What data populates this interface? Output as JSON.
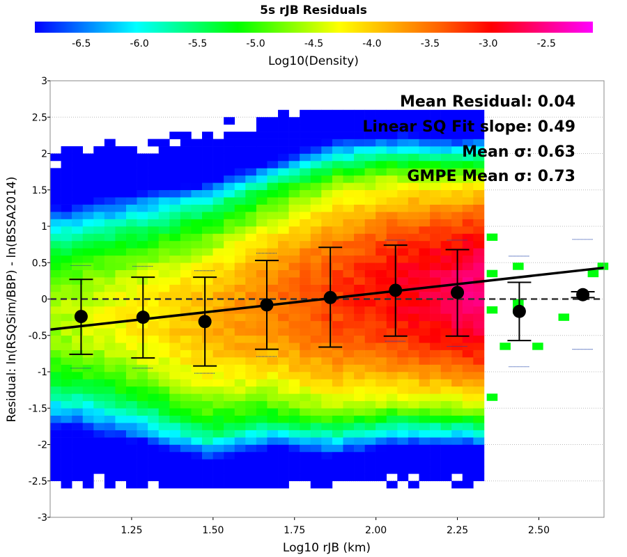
{
  "chart_data": {
    "type": "heatmap",
    "title": "5s rJB Residuals",
    "colorbar": {
      "label": "Log10(Density)",
      "range": [
        -6.9,
        -2.1
      ],
      "ticks": [
        -6.5,
        -6.0,
        -5.5,
        -5.0,
        -4.5,
        -4.0,
        -3.5,
        -3.0,
        -2.5
      ],
      "tick_labels": [
        "-6.5",
        "-6.0",
        "-5.5",
        "-5.0",
        "-4.5",
        "-4.0",
        "-3.5",
        "-3.0",
        "-2.5"
      ],
      "colors": [
        "#0000ff",
        "#0080ff",
        "#00ffff",
        "#00ff80",
        "#00ff00",
        "#80ff00",
        "#ffff00",
        "#ffb000",
        "#ff6000",
        "#ff0000",
        "#ff0080",
        "#ff00ff"
      ]
    },
    "xlabel": "Log10 rJB (km)",
    "ylabel": "Residual: ln(RSQSim/BBP) - ln(BSSA2014)",
    "xlim": [
      1.0,
      2.7
    ],
    "ylim": [
      -3,
      3
    ],
    "xticks": [
      1.25,
      1.5,
      1.75,
      2.0,
      2.25,
      2.5
    ],
    "xtick_labels": [
      "1.25",
      "1.50",
      "1.75",
      "2.00",
      "2.25",
      "2.50"
    ],
    "yticks": [
      -3,
      -2.5,
      -2,
      -1.5,
      -1,
      -0.5,
      0,
      0.5,
      1,
      1.5,
      2,
      2.5,
      3
    ],
    "ytick_labels": [
      "-3",
      "-2.5",
      "-2",
      "-1.5",
      "-1",
      "-0.5",
      "0",
      "0.5",
      "1",
      "1.5",
      "2",
      "2.5",
      "3"
    ],
    "grid": true,
    "heatmap": {
      "x_range": [
        1.0,
        2.32
      ],
      "bin_width": 0.0333,
      "bin_height": 0.1,
      "columns": [
        {
          "x": 1.1,
          "center": -0.25,
          "sigma": 0.52
        },
        {
          "x": 1.29,
          "center": -0.26,
          "sigma": 0.56
        },
        {
          "x": 1.48,
          "center": -0.31,
          "sigma": 0.62
        },
        {
          "x": 1.67,
          "center": -0.08,
          "sigma": 0.62
        },
        {
          "x": 1.87,
          "center": 0.02,
          "sigma": 0.69
        },
        {
          "x": 2.06,
          "center": 0.12,
          "sigma": 0.64
        },
        {
          "x": 2.25,
          "center": 0.09,
          "sigma": 0.6
        }
      ],
      "outliers": [
        {
          "x": 2.34,
          "y": 0.85,
          "value": -5.2
        },
        {
          "x": 2.34,
          "y": 0.35,
          "value": -5.2
        },
        {
          "x": 2.34,
          "y": -0.15,
          "value": -5.2
        },
        {
          "x": 2.34,
          "y": -1.35,
          "value": -5.2
        },
        {
          "x": 2.38,
          "y": -0.65,
          "value": -5.2
        },
        {
          "x": 2.42,
          "y": 0.45,
          "value": -5.2
        },
        {
          "x": 2.42,
          "y": -0.05,
          "value": -5.2
        },
        {
          "x": 2.42,
          "y": -0.15,
          "value": -5.2
        },
        {
          "x": 2.48,
          "y": -0.65,
          "value": -5.2
        },
        {
          "x": 2.56,
          "y": -0.25,
          "value": -5.2
        },
        {
          "x": 2.65,
          "y": 0.35,
          "value": -5.2
        },
        {
          "x": 2.68,
          "y": 0.45,
          "value": -5.2
        }
      ]
    },
    "binned_means": [
      {
        "x": 1.095,
        "mean": -0.24,
        "std_lower": -0.76,
        "std_upper": 0.27,
        "q_lower": -0.95,
        "q_upper": 0.46
      },
      {
        "x": 1.285,
        "mean": -0.25,
        "std_lower": -0.81,
        "std_upper": 0.3,
        "q_lower": -0.95,
        "q_upper": 0.45
      },
      {
        "x": 1.475,
        "mean": -0.31,
        "std_lower": -0.92,
        "std_upper": 0.3,
        "q_lower": -1.02,
        "q_upper": 0.39
      },
      {
        "x": 1.665,
        "mean": -0.08,
        "std_lower": -0.69,
        "std_upper": 0.53,
        "q_lower": -0.79,
        "q_upper": 0.63
      },
      {
        "x": 1.86,
        "mean": 0.02,
        "std_lower": -0.66,
        "std_upper": 0.71,
        "q_lower": -0.66,
        "q_upper": 0.71
      },
      {
        "x": 2.06,
        "mean": 0.12,
        "std_lower": -0.51,
        "std_upper": 0.74,
        "q_lower": -0.58,
        "q_upper": 0.81
      },
      {
        "x": 2.25,
        "mean": 0.09,
        "std_lower": -0.51,
        "std_upper": 0.68,
        "q_lower": -0.65,
        "q_upper": 0.81
      },
      {
        "x": 2.44,
        "mean": -0.17,
        "std_lower": -0.57,
        "std_upper": 0.23,
        "q_lower": -0.93,
        "q_upper": 0.59
      },
      {
        "x": 2.635,
        "mean": 0.06,
        "std_lower": 0.02,
        "std_upper": 0.1,
        "q_lower": -0.69,
        "q_upper": 0.82
      }
    ],
    "fit_line": {
      "x": [
        1.0,
        2.7
      ],
      "y": [
        -0.42,
        0.43
      ]
    },
    "zero_line": 0,
    "annotations": [
      "Mean Residual: 0.04",
      "Linear SQ Fit slope: 0.49",
      "Mean σ: 0.63",
      "GMPE Mean σ: 0.73"
    ]
  }
}
